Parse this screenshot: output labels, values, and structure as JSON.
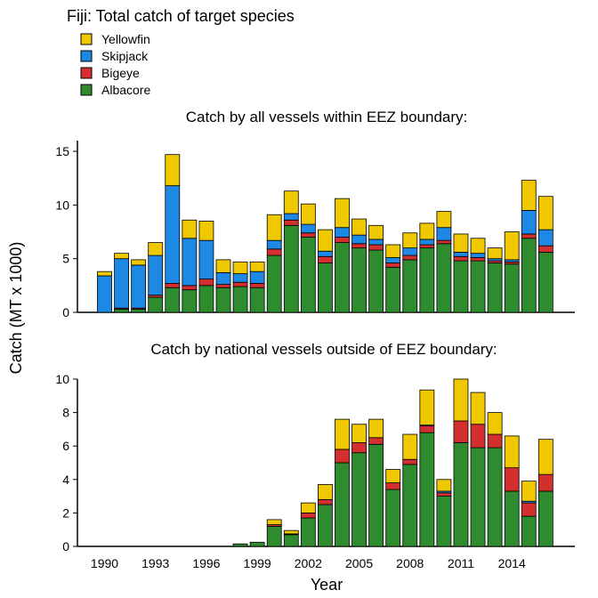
{
  "figure": {
    "title": "Fiji: Total catch of target species",
    "ylabel": "Catch (MT x 1000)",
    "xlabel": "Year"
  },
  "legend": [
    {
      "name": "Yellowfin",
      "color": "#F0C800"
    },
    {
      "name": "Skipjack",
      "color": "#1E88E5"
    },
    {
      "name": "Bigeye",
      "color": "#D32F2F"
    },
    {
      "name": "Albacore",
      "color": "#2E8B2E"
    }
  ],
  "chart_data": [
    {
      "type": "bar",
      "stacked": true,
      "title": "Catch by all vessels within EEZ boundary:",
      "xlabel": "Year",
      "ylabel": "Catch (MT x 1000)",
      "ylim": [
        0,
        16
      ],
      "yticks": [
        0,
        5,
        10,
        15
      ],
      "categories": [
        1990,
        1991,
        1992,
        1993,
        1994,
        1995,
        1996,
        1997,
        1998,
        1999,
        2000,
        2001,
        2002,
        2003,
        2004,
        2005,
        2006,
        2007,
        2008,
        2009,
        2010,
        2011,
        2012,
        2013,
        2014,
        2015,
        2016
      ],
      "series": [
        {
          "name": "Albacore",
          "color": "#2E8B2E",
          "values": [
            0,
            0.3,
            0.3,
            1.4,
            2.3,
            2.1,
            2.5,
            2.3,
            2.4,
            2.3,
            5.3,
            8.1,
            7.0,
            4.6,
            6.5,
            6.0,
            5.8,
            4.2,
            4.9,
            6.0,
            6.4,
            4.8,
            4.8,
            4.6,
            4.5,
            6.9,
            5.6
          ]
        },
        {
          "name": "Bigeye",
          "color": "#D32F2F",
          "values": [
            0,
            0.1,
            0.1,
            0.2,
            0.4,
            0.4,
            0.6,
            0.3,
            0.4,
            0.4,
            0.6,
            0.5,
            0.4,
            0.6,
            0.5,
            0.4,
            0.5,
            0.4,
            0.4,
            0.3,
            0.3,
            0.4,
            0.3,
            0.2,
            0.2,
            0.4,
            0.6
          ]
        },
        {
          "name": "Skipjack",
          "color": "#1E88E5",
          "values": [
            3.4,
            4.6,
            4.0,
            3.7,
            9.1,
            4.4,
            3.6,
            1.1,
            0.8,
            1.1,
            0.8,
            0.6,
            0.8,
            0.5,
            0.9,
            0.8,
            0.5,
            0.5,
            0.7,
            0.5,
            1.2,
            0.4,
            0.4,
            0.2,
            0.2,
            2.2,
            1.5
          ]
        },
        {
          "name": "Yellowfin",
          "color": "#F0C800",
          "values": [
            0.4,
            0.5,
            0.5,
            1.2,
            2.9,
            1.7,
            1.8,
            1.2,
            1.1,
            0.9,
            2.4,
            2.1,
            1.9,
            2.0,
            2.7,
            1.5,
            1.3,
            1.2,
            1.4,
            1.5,
            1.5,
            1.7,
            1.4,
            1.0,
            2.6,
            2.8,
            3.1
          ]
        }
      ]
    },
    {
      "type": "bar",
      "stacked": true,
      "title": "Catch by national vessels outside of EEZ boundary:",
      "xlabel": "Year",
      "ylabel": "Catch (MT x 1000)",
      "ylim": [
        0,
        10
      ],
      "yticks": [
        0,
        2,
        4,
        6,
        8,
        10
      ],
      "categories": [
        1990,
        1991,
        1992,
        1993,
        1994,
        1995,
        1996,
        1997,
        1998,
        1999,
        2000,
        2001,
        2002,
        2003,
        2004,
        2005,
        2006,
        2007,
        2008,
        2009,
        2010,
        2011,
        2012,
        2013,
        2014,
        2015,
        2016
      ],
      "xticks": [
        1990,
        1993,
        1996,
        1999,
        2002,
        2005,
        2008,
        2011,
        2014
      ],
      "series": [
        {
          "name": "Albacore",
          "color": "#2E8B2E",
          "values": [
            0,
            0,
            0,
            0,
            0,
            0,
            0,
            0,
            0.15,
            0.25,
            1.2,
            0.7,
            1.7,
            2.5,
            5.0,
            5.6,
            6.1,
            3.4,
            4.9,
            6.8,
            3.0,
            6.2,
            5.9,
            5.9,
            3.3,
            1.8,
            3.3
          ]
        },
        {
          "name": "Bigeye",
          "color": "#D32F2F",
          "values": [
            0,
            0,
            0,
            0,
            0,
            0,
            0,
            0,
            0,
            0,
            0.1,
            0.05,
            0.3,
            0.3,
            0.8,
            0.6,
            0.4,
            0.4,
            0.3,
            0.4,
            0.2,
            1.3,
            1.4,
            0.8,
            1.4,
            0.8,
            1.0
          ]
        },
        {
          "name": "Skipjack",
          "color": "#1E88E5",
          "values": [
            0,
            0,
            0,
            0,
            0,
            0,
            0,
            0,
            0,
            0,
            0,
            0,
            0,
            0,
            0,
            0,
            0,
            0,
            0,
            0.05,
            0.1,
            0,
            0,
            0,
            0,
            0.1,
            0
          ]
        },
        {
          "name": "Yellowfin",
          "color": "#F0C800",
          "values": [
            0,
            0,
            0,
            0,
            0,
            0,
            0,
            0,
            0,
            0,
            0.3,
            0.2,
            0.6,
            0.9,
            1.8,
            1.1,
            1.1,
            0.8,
            1.5,
            2.1,
            0.7,
            2.5,
            1.9,
            1.3,
            1.9,
            1.2,
            2.1
          ]
        }
      ]
    }
  ]
}
